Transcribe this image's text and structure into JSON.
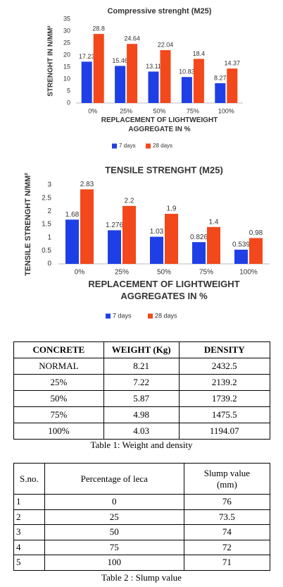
{
  "chart_data": [
    {
      "type": "bar",
      "title": "Compressive strenght (M25)",
      "ylabel": "STRENGHT IN N/MM²",
      "xlabel": "REPLACEMENT OF LIGHTWEIGHT AGGREGATE IN %",
      "categories": [
        "0%",
        "25%",
        "50%",
        "75%",
        "100%"
      ],
      "series": [
        {
          "name": "7 days",
          "color": "#1f3fe6",
          "values": [
            17.23,
            15.46,
            13.11,
            10.83,
            8.27
          ]
        },
        {
          "name": "28 days",
          "color": "#f2481b",
          "values": [
            28.8,
            24.64,
            22.04,
            18.4,
            14.37
          ]
        }
      ],
      "ylim": [
        0,
        35
      ],
      "yticks": [
        0,
        5,
        10,
        15,
        20,
        25,
        30,
        35
      ],
      "grid": false,
      "legend": "bottom"
    },
    {
      "type": "bar",
      "title": "TENSILE STRENGHT (M25)",
      "ylabel": "TENSILE STRENGHT N/MM²",
      "xlabel": "REPLACEMENT OF LIGHTWEIGHT AGGREGATES IN %",
      "categories": [
        "0%",
        "25%",
        "50%",
        "75%",
        "100%"
      ],
      "series": [
        {
          "name": "7 days",
          "color": "#1f3fe6",
          "values": [
            1.68,
            1.276,
            1.03,
            0.826,
            0.539
          ]
        },
        {
          "name": "28 days",
          "color": "#f2481b",
          "values": [
            2.83,
            2.2,
            1.9,
            1.4,
            0.98
          ]
        }
      ],
      "ylim": [
        0,
        3
      ],
      "yticks": [
        0,
        0.5,
        1,
        1.5,
        2,
        2.5,
        3
      ],
      "grid": false,
      "legend": "bottom"
    }
  ],
  "tables": [
    {
      "header": [
        "CONCRETE",
        "WEIGHT (Kg)",
        "DENSITY"
      ],
      "rows": [
        [
          "NORMAL",
          "8.21",
          "2432.5"
        ],
        [
          "25%",
          "7.22",
          "2139.2"
        ],
        [
          "50%",
          "5.87",
          "1739.2"
        ],
        [
          "75%",
          "4.98",
          "1475.5"
        ],
        [
          "100%",
          "4.03",
          "1194.07"
        ]
      ],
      "caption": "Table 1: Weight and density"
    },
    {
      "header": [
        "S.no.",
        "Percentage of leca",
        "Slump value (mm)"
      ],
      "rows": [
        [
          "1",
          "0",
          "76"
        ],
        [
          "2",
          "25",
          "73.5"
        ],
        [
          "3",
          "50",
          "74"
        ],
        [
          "4",
          "75",
          "72"
        ],
        [
          "5",
          "100",
          "71"
        ]
      ],
      "caption": "Table 2 : Slump value"
    }
  ]
}
